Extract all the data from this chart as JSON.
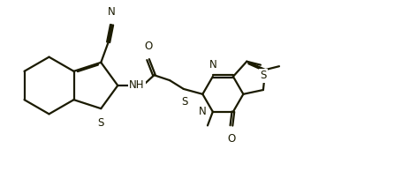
{
  "bg_color": "#ffffff",
  "line_color": "#1a1a00",
  "text_color": "#1a1a00",
  "line_width": 1.6,
  "font_size": 8.5,
  "figsize": [
    4.55,
    1.94
  ],
  "dpi": 100,
  "xlim": [
    0,
    4.55
  ],
  "ylim": [
    0,
    1.94
  ]
}
